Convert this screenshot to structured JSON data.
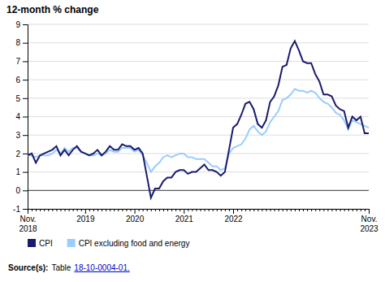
{
  "chart_data": {
    "type": "line",
    "title": "12-month % change",
    "categories": [
      "Nov.\n2018",
      null,
      null,
      null,
      null,
      null,
      null,
      null,
      null,
      null,
      null,
      null,
      null,
      null,
      "2019",
      null,
      null,
      null,
      null,
      null,
      null,
      null,
      null,
      null,
      null,
      null,
      "2020",
      null,
      null,
      null,
      null,
      null,
      null,
      null,
      null,
      null,
      null,
      null,
      "2021",
      null,
      null,
      null,
      null,
      null,
      null,
      null,
      null,
      null,
      null,
      null,
      "2022",
      null,
      null,
      null,
      null,
      null,
      null,
      null,
      null,
      null,
      null,
      null,
      null,
      null,
      null,
      null,
      null,
      null,
      null,
      null,
      null,
      null,
      null,
      null,
      null,
      null,
      null,
      null,
      null,
      null,
      null,
      null,
      null,
      "Nov.\n2023"
    ],
    "series": [
      {
        "name": "CPI",
        "color": "#1a1a6e",
        "values": [
          1.9,
          2.0,
          1.5,
          1.9,
          2.0,
          2.1,
          2.2,
          2.4,
          1.9,
          2.2,
          1.9,
          2.2,
          2.4,
          2.1,
          2.0,
          1.9,
          2.0,
          2.2,
          1.9,
          2.1,
          2.4,
          2.2,
          2.2,
          2.5,
          2.4,
          2.4,
          2.2,
          2.3,
          2.0,
          0.8,
          -0.4,
          0.1,
          0.1,
          0.5,
          0.7,
          0.7,
          1.0,
          1.1,
          1.1,
          0.9,
          1.0,
          1.0,
          1.2,
          1.4,
          1.1,
          1.1,
          1.0,
          0.8,
          1.0,
          2.2,
          3.4,
          3.6,
          4.1,
          4.7,
          4.8,
          4.4,
          3.6,
          3.4,
          3.8,
          4.8,
          5.1,
          5.7,
          6.7,
          6.8,
          7.7,
          8.1,
          7.6,
          7.0,
          6.9,
          6.9,
          6.3,
          5.9,
          5.2,
          5.2,
          5.1,
          4.6,
          4.4,
          4.3,
          3.4,
          4.0,
          3.8,
          4.0,
          3.1,
          3.1
        ]
      },
      {
        "name": "CPI excluding food and energy",
        "color": "#99ccff",
        "values": [
          1.9,
          1.9,
          1.8,
          1.9,
          1.9,
          1.9,
          2.0,
          2.2,
          2.0,
          2.3,
          2.1,
          2.3,
          2.3,
          2.1,
          2.0,
          1.9,
          1.9,
          2.0,
          1.9,
          2.0,
          2.2,
          2.1,
          2.1,
          2.3,
          2.3,
          2.3,
          2.1,
          2.2,
          1.9,
          1.5,
          1.0,
          1.3,
          1.5,
          1.8,
          1.9,
          1.8,
          1.9,
          2.0,
          2.0,
          1.8,
          1.8,
          1.7,
          1.7,
          1.7,
          1.5,
          1.3,
          1.3,
          1.1,
          1.2,
          2.0,
          2.3,
          2.4,
          2.5,
          2.8,
          3.3,
          3.5,
          3.2,
          3.0,
          3.2,
          3.7,
          4.0,
          4.3,
          4.9,
          5.0,
          5.2,
          5.5,
          5.4,
          5.4,
          5.3,
          5.4,
          5.3,
          5.0,
          4.8,
          4.7,
          4.5,
          4.2,
          4.1,
          3.8,
          3.3,
          3.8,
          3.7,
          3.6,
          3.5,
          3.4
        ]
      }
    ],
    "ylim": [
      -1,
      9
    ],
    "yticks": [
      -1,
      0,
      1,
      2,
      3,
      4,
      5,
      6,
      7,
      8,
      9
    ],
    "grid": true,
    "annotations": [
      "Source(s):",
      "Table",
      "18-10-0004-01."
    ]
  }
}
